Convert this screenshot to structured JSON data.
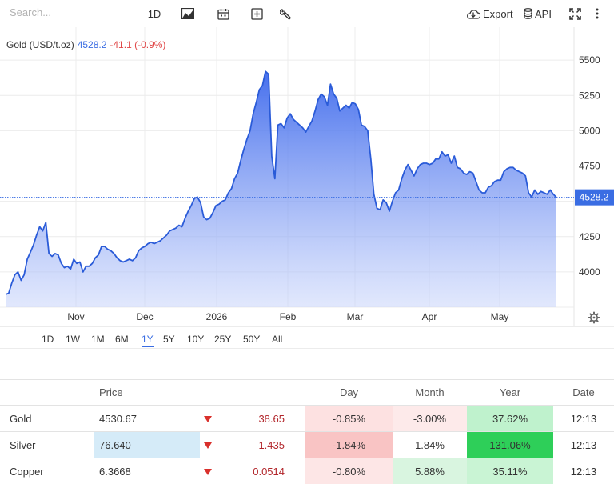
{
  "search": {
    "placeholder": "Search..."
  },
  "toolbar": {
    "interval_label": "1D",
    "export_label": "Export",
    "api_label": "API",
    "icons": [
      "chart-type-icon",
      "calendar-icon",
      "compare-add-icon",
      "wrench-icon",
      "cloud-download-icon",
      "database-icon",
      "fullscreen-icon",
      "more-vert-icon"
    ]
  },
  "chart": {
    "instrument": "Gold (USD/t.oz)",
    "last": "4528.2",
    "change": "-41.1 (-0.9%)",
    "last_tag": "4528.2",
    "accent_color": "#3a6de3",
    "down_color": "#e04646",
    "y_ticks": [
      "5500",
      "5250",
      "5000",
      "4750",
      "4500",
      "4250",
      "4000"
    ],
    "x_labels": [
      "Nov",
      "Dec",
      "2026",
      "Feb",
      "Mar",
      "Apr",
      "May"
    ]
  },
  "chart_data": {
    "type": "area",
    "title": "Gold (USD/t.oz)",
    "xlabel": "",
    "ylabel": "",
    "ylim": [
      3750,
      5750
    ],
    "x_tick_labels": [
      "Nov",
      "Dec",
      "2026",
      "Feb",
      "Mar",
      "Apr",
      "May"
    ],
    "y_tick_labels": [
      "4000",
      "4250",
      "4500",
      "4750",
      "5000",
      "5250",
      "5500"
    ],
    "last_value": 4528.2,
    "grid": true,
    "series": [
      {
        "values": [
          3840,
          3850,
          3920,
          3980,
          4000,
          3940,
          3980,
          4090,
          4140,
          4190,
          4260,
          4320,
          4290,
          4350,
          4130,
          4110,
          4130,
          4120,
          4060,
          4030,
          4040,
          4020,
          4090,
          4060,
          4070,
          4000,
          4040,
          4040,
          4060,
          4100,
          4120,
          4180,
          4180,
          4160,
          4150,
          4130,
          4100,
          4080,
          4070,
          4080,
          4090,
          4080,
          4100,
          4150,
          4170,
          4180,
          4200,
          4210,
          4200,
          4210,
          4220,
          4240,
          4260,
          4290,
          4300,
          4310,
          4330,
          4320,
          4380,
          4430,
          4470,
          4520,
          4530,
          4490,
          4390,
          4370,
          4380,
          4420,
          4470,
          4480,
          4500,
          4510,
          4560,
          4590,
          4660,
          4700,
          4790,
          4870,
          4940,
          5000,
          5120,
          5200,
          5290,
          5320,
          5420,
          5400,
          4820,
          4660,
          5040,
          5050,
          5020,
          5090,
          5120,
          5080,
          5060,
          5040,
          5020,
          4990,
          5030,
          5070,
          5140,
          5220,
          5260,
          5240,
          5180,
          5330,
          5260,
          5230,
          5140,
          5160,
          5180,
          5160,
          5200,
          5190,
          5150,
          5040,
          5030,
          5000,
          4800,
          4550,
          4450,
          4440,
          4510,
          4490,
          4430,
          4500,
          4560,
          4580,
          4660,
          4720,
          4760,
          4720,
          4680,
          4730,
          4760,
          4770,
          4770,
          4760,
          4770,
          4800,
          4800,
          4850,
          4820,
          4830,
          4770,
          4820,
          4740,
          4730,
          4700,
          4690,
          4710,
          4700,
          4640,
          4580,
          4560,
          4560,
          4600,
          4610,
          4640,
          4650,
          4650,
          4710,
          4730,
          4740,
          4740,
          4720,
          4710,
          4700,
          4680,
          4560,
          4530,
          4580,
          4550,
          4570,
          4560,
          4550,
          4580,
          4550,
          4528
        ]
      }
    ]
  },
  "range_tabs": [
    "1D",
    "1W",
    "1M",
    "6M",
    "1Y",
    "5Y",
    "10Y",
    "25Y",
    "50Y",
    "All"
  ],
  "active_range": "1Y",
  "table": {
    "headers": {
      "name": "",
      "price": "Price",
      "day": "Day",
      "month": "Month",
      "year": "Year",
      "date": "Date"
    },
    "rows": [
      {
        "name": "Gold",
        "price": "4530.67",
        "change": "38.65",
        "day": "-0.85%",
        "month": "-3.00%",
        "year": "37.62%",
        "date": "12:13",
        "price_bg": "#ffffff",
        "day_bg": "#fde1e1",
        "month_bg": "#fdeaea",
        "year_bg": "#bff2cd"
      },
      {
        "name": "Silver",
        "price": "76.640",
        "change": "1.435",
        "day": "-1.84%",
        "month": "1.84%",
        "year": "131.06%",
        "date": "12:13",
        "price_bg": "#d5ebf8",
        "day_bg": "#f9c4c4",
        "month_bg": "#ffffff",
        "year_bg": "#2ecf59"
      },
      {
        "name": "Copper",
        "price": "6.3668",
        "change": "0.0514",
        "day": "-0.80%",
        "month": "5.88%",
        "year": "35.11%",
        "date": "12:13",
        "price_bg": "#ffffff",
        "day_bg": "#fde6e6",
        "month_bg": "#d9f5e0",
        "year_bg": "#c9f4d4"
      }
    ]
  }
}
